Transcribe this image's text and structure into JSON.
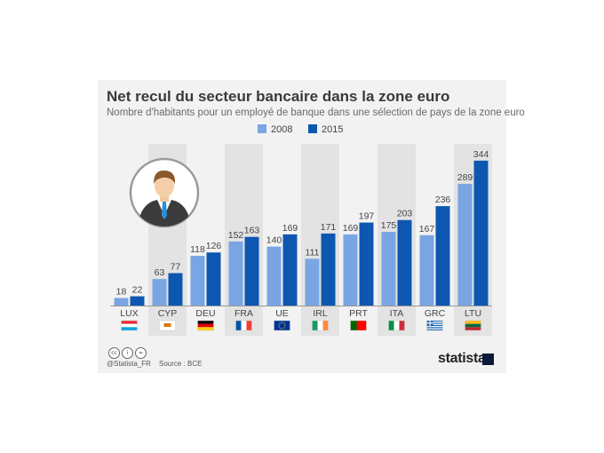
{
  "title": "Net recul du secteur bancaire dans la zone euro",
  "subtitle": "Nombre d'habitants pour un employé de banque dans une sélection de pays de la zone euro",
  "footer": {
    "handle": "@Statista_FR",
    "source": "Source : BCE",
    "brand": "statista"
  },
  "icons": [
    "cc-icon",
    "by-icon",
    "nd-icon",
    "banker-avatar-icon"
  ],
  "colors": {
    "series_2008": "#7aa5e3",
    "series_2015": "#0d57b1",
    "band": "#e3e3e3",
    "card": "#f2f2f2"
  },
  "chart_data": {
    "type": "bar",
    "categories": [
      "LUX",
      "CYP",
      "DEU",
      "FRA",
      "UE",
      "IRL",
      "PRT",
      "ITA",
      "GRC",
      "LTU"
    ],
    "series": [
      {
        "name": "2008",
        "values": [
          18,
          63,
          118,
          152,
          140,
          111,
          169,
          175,
          167,
          289
        ]
      },
      {
        "name": "2015",
        "values": [
          22,
          77,
          126,
          163,
          169,
          171,
          197,
          203,
          236,
          344
        ]
      }
    ],
    "title": "Net recul du secteur bancaire dans la zone euro",
    "xlabel": "",
    "ylabel": "",
    "ylim": [
      0,
      350
    ],
    "grid": false,
    "legend": "top-center",
    "flags": [
      "flag-lux-icon",
      "flag-cyp-icon",
      "flag-deu-icon",
      "flag-fra-icon",
      "flag-eu-icon",
      "flag-irl-icon",
      "flag-prt-icon",
      "flag-ita-icon",
      "flag-grc-icon",
      "flag-ltu-icon"
    ]
  }
}
